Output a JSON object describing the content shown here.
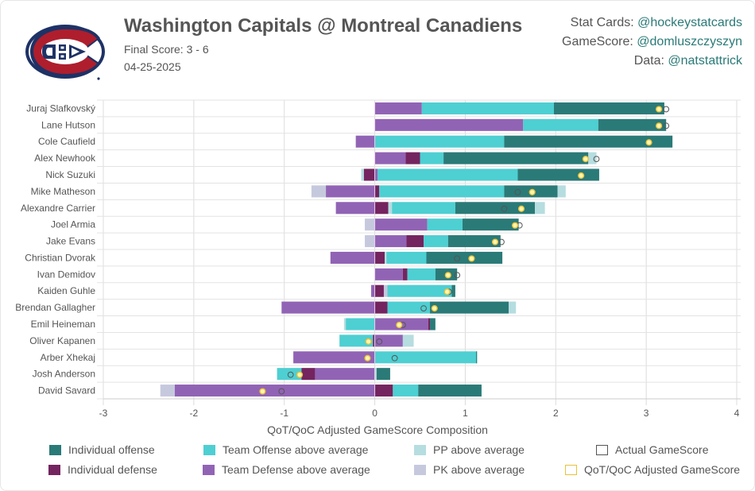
{
  "header": {
    "title": "Washington Capitals @ Montreal Canadiens",
    "final_score": "Final Score: 3 - 6",
    "date": "04-25-2025",
    "logo": "montreal-canadiens-logo"
  },
  "credits": [
    {
      "label": "Stat Cards: ",
      "handle": "@hockeystatcards"
    },
    {
      "label": "GameScore: ",
      "handle": "@domluszczyszyn"
    },
    {
      "label": "Data: ",
      "handle": "@natstattrick"
    }
  ],
  "colors": {
    "individual_offense": "#2a7a78",
    "individual_defense": "#74245f",
    "team_offense": "#4ecfd2",
    "team_defense": "#9163b5",
    "pp": "#b6dde0",
    "pk": "#c6c9de",
    "actual_marker": "#555555",
    "adjusted_marker": "#e8c23a"
  },
  "legend": [
    {
      "key": "individual_offense",
      "label": "Individual offense"
    },
    {
      "key": "team_offense",
      "label": "Team Offense above average"
    },
    {
      "key": "pp",
      "label": "PP above average"
    },
    {
      "key": "actual",
      "label": "Actual GameScore"
    },
    {
      "key": "individual_defense",
      "label": "Individual defense"
    },
    {
      "key": "team_defense",
      "label": "Team Defense above average"
    },
    {
      "key": "pk",
      "label": "PK above average"
    },
    {
      "key": "adjusted",
      "label": "QoT/QoC Adjusted GameScore"
    }
  ],
  "chart_data": {
    "type": "bar",
    "orientation": "horizontal-stacked-diverging",
    "title": "",
    "xlabel": "QoT/QoC Adjusted GameScore Composition",
    "ylabel": "",
    "xlim": [
      -3,
      4
    ],
    "xticks": [
      "-3",
      "-2",
      "-1",
      "0",
      "1",
      "2",
      "3",
      "4"
    ],
    "grid": true,
    "legend_position": "bottom",
    "series_order": [
      "pk",
      "team_defense",
      "individual_defense",
      "team_offense",
      "individual_offense",
      "pp"
    ],
    "players": [
      {
        "name": "Juraj Slafkovský",
        "segments": [
          [
            "team_defense",
            0,
            0.52
          ],
          [
            "team_offense",
            0.52,
            1.98
          ],
          [
            "individual_offense",
            1.98,
            3.2
          ]
        ],
        "actual": 3.22,
        "adjusted": 3.14
      },
      {
        "name": "Lane Hutson",
        "segments": [
          [
            "team_defense",
            0,
            1.64
          ],
          [
            "team_offense",
            1.64,
            2.47
          ],
          [
            "individual_offense",
            2.47,
            3.22
          ]
        ],
        "actual": 3.22,
        "adjusted": 3.14
      },
      {
        "name": "Cole Caufield",
        "segments": [
          [
            "team_defense",
            -0.21,
            0
          ],
          [
            "team_offense",
            0,
            1.43
          ],
          [
            "individual_offense",
            1.43,
            3.29
          ]
        ],
        "actual": 3.03,
        "adjusted": 3.03
      },
      {
        "name": "Alex Newhook",
        "segments": [
          [
            "team_defense",
            0,
            0.34
          ],
          [
            "individual_defense",
            0.34,
            0.5
          ],
          [
            "team_offense",
            0.5,
            0.76
          ],
          [
            "individual_offense",
            0.76,
            2.36
          ],
          [
            "pp",
            2.36,
            2.45
          ]
        ],
        "actual": 2.45,
        "adjusted": 2.33
      },
      {
        "name": "Nick Suzuki",
        "segments": [
          [
            "pp",
            -0.15,
            -0.12
          ],
          [
            "individual_defense",
            -0.12,
            0
          ],
          [
            "team_defense",
            0,
            0.03
          ],
          [
            "team_offense",
            0.03,
            1.58
          ],
          [
            "individual_offense",
            1.58,
            2.48
          ]
        ],
        "actual": 2.28,
        "adjusted": 2.28
      },
      {
        "name": "Mike Matheson",
        "segments": [
          [
            "pk",
            -0.7,
            -0.54
          ],
          [
            "team_defense",
            -0.54,
            0
          ],
          [
            "individual_defense",
            0,
            0.05
          ],
          [
            "team_offense",
            0.05,
            1.43
          ],
          [
            "individual_offense",
            1.43,
            2.02
          ],
          [
            "pp",
            2.02,
            2.11
          ]
        ],
        "actual": 1.58,
        "adjusted": 1.74
      },
      {
        "name": "Alexandre Carrier",
        "segments": [
          [
            "team_defense",
            -0.43,
            0
          ],
          [
            "individual_defense",
            0,
            0.15
          ],
          [
            "pp",
            0.15,
            0.19
          ],
          [
            "team_offense",
            0.19,
            0.89
          ],
          [
            "individual_offense",
            0.89,
            1.77
          ],
          [
            "pp",
            1.77,
            1.88
          ]
        ],
        "actual": 1.43,
        "adjusted": 1.62
      },
      {
        "name": "Joel Armia",
        "segments": [
          [
            "pk",
            -0.11,
            0
          ],
          [
            "team_defense",
            0,
            0.58
          ],
          [
            "team_offense",
            0.58,
            0.97
          ],
          [
            "individual_offense",
            0.97,
            1.59
          ]
        ],
        "actual": 1.6,
        "adjusted": 1.55
      },
      {
        "name": "Jake Evans",
        "segments": [
          [
            "pk",
            -0.11,
            0
          ],
          [
            "team_defense",
            0,
            0.35
          ],
          [
            "individual_defense",
            0.35,
            0.54
          ],
          [
            "team_offense",
            0.54,
            0.81
          ],
          [
            "individual_offense",
            0.81,
            1.39
          ]
        ],
        "actual": 1.4,
        "adjusted": 1.33
      },
      {
        "name": "Christian Dvorak",
        "segments": [
          [
            "team_defense",
            -0.49,
            0
          ],
          [
            "individual_defense",
            0,
            0.11
          ],
          [
            "pp",
            0.11,
            0.13
          ],
          [
            "team_offense",
            0.13,
            0.57
          ],
          [
            "individual_offense",
            0.57,
            1.41
          ]
        ],
        "actual": 0.91,
        "adjusted": 1.07
      },
      {
        "name": "Ivan Demidov",
        "segments": [
          [
            "team_defense",
            0,
            0.31
          ],
          [
            "individual_defense",
            0.31,
            0.36
          ],
          [
            "team_offense",
            0.36,
            0.67
          ],
          [
            "individual_offense",
            0.67,
            0.91
          ]
        ],
        "actual": 0.91,
        "adjusted": 0.81
      },
      {
        "name": "Kaiden Guhle",
        "segments": [
          [
            "team_defense",
            -0.04,
            0
          ],
          [
            "individual_defense",
            0,
            0.1
          ],
          [
            "pk",
            0.1,
            0.14
          ],
          [
            "team_offense",
            0.14,
            0.85
          ],
          [
            "individual_offense",
            0.85,
            0.89
          ]
        ],
        "actual": 0.82,
        "adjusted": 0.8
      },
      {
        "name": "Brendan Gallagher",
        "segments": [
          [
            "team_defense",
            -1.03,
            0
          ],
          [
            "individual_defense",
            0,
            0.14
          ],
          [
            "team_offense",
            0.14,
            0.61
          ],
          [
            "individual_offense",
            0.61,
            1.48
          ],
          [
            "pp",
            1.48,
            1.56
          ]
        ],
        "actual": 0.54,
        "adjusted": 0.66
      },
      {
        "name": "Emil Heineman",
        "segments": [
          [
            "pp",
            -0.34,
            -0.32
          ],
          [
            "team_offense",
            -0.32,
            0
          ],
          [
            "team_defense",
            0,
            0.59
          ],
          [
            "individual_defense",
            0.59,
            0.61
          ],
          [
            "individual_offense",
            0.61,
            0.67
          ]
        ],
        "actual": 0.31,
        "adjusted": 0.27
      },
      {
        "name": "Oliver Kapanen",
        "segments": [
          [
            "team_offense",
            -0.39,
            -0.02
          ],
          [
            "individual_defense",
            -0.02,
            0
          ],
          [
            "team_defense",
            0,
            0.31
          ],
          [
            "pp",
            0.31,
            0.43
          ]
        ],
        "actual": 0.05,
        "adjusted": -0.07
      },
      {
        "name": "Arber Xhekaj",
        "segments": [
          [
            "team_defense",
            -0.9,
            0
          ],
          [
            "team_offense",
            0,
            1.13
          ],
          [
            "individual_offense",
            1.12,
            1.13
          ]
        ],
        "actual": 0.22,
        "adjusted": -0.08
      },
      {
        "name": "Josh Anderson",
        "segments": [
          [
            "team_offense",
            -1.08,
            -0.81
          ],
          [
            "individual_defense",
            -0.81,
            -0.66
          ],
          [
            "team_defense",
            -0.66,
            0
          ],
          [
            "pp",
            0,
            0.02
          ],
          [
            "individual_offense",
            0.02,
            0.17
          ]
        ],
        "actual": -0.93,
        "adjusted": -0.83
      },
      {
        "name": "David Savard",
        "segments": [
          [
            "pk",
            -2.37,
            -2.21
          ],
          [
            "team_defense",
            -2.21,
            0
          ],
          [
            "individual_defense",
            0,
            0.2
          ],
          [
            "team_offense",
            0.2,
            0.48
          ],
          [
            "individual_offense",
            0.48,
            1.18
          ]
        ],
        "actual": -1.03,
        "adjusted": -1.24
      }
    ]
  }
}
